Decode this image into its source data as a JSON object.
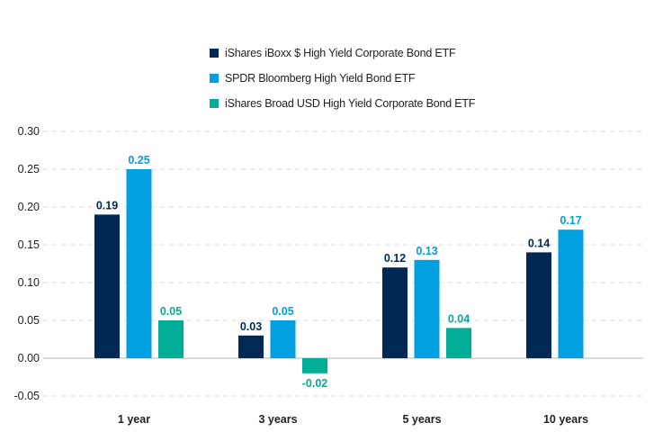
{
  "chart_data": {
    "type": "bar",
    "title": "",
    "xlabel": "",
    "ylabel": "",
    "categories": [
      "1 year",
      "3 years",
      "5 years",
      "10 years"
    ],
    "series": [
      {
        "name": "iShares iBoxx $ High Yield Corporate Bond ETF",
        "color": "#002855",
        "values": [
          0.19,
          0.03,
          0.12,
          0.14
        ],
        "labels": [
          "0.19",
          "0.03",
          "0.12",
          "0.14"
        ]
      },
      {
        "name": "SPDR Bloomberg High Yield Bond ETF",
        "color": "#009FDF",
        "values": [
          0.25,
          0.05,
          0.13,
          0.17
        ],
        "labels": [
          "0.25",
          "0.05",
          "0.13",
          "0.17"
        ]
      },
      {
        "name": "iShares Broad USD High Yield Corporate Bond ETF",
        "color": "#00AE97",
        "values": [
          0.05,
          -0.02,
          0.04,
          null
        ],
        "labels": [
          "0.05",
          "-0.02",
          "0.04",
          null
        ]
      }
    ],
    "ylim": [
      -0.05,
      0.3
    ],
    "yticks": [
      "0.30",
      "0.25",
      "0.20",
      "0.15",
      "0.10",
      "0.05",
      "0.00",
      "-0.05"
    ],
    "ytick_values": [
      0.3,
      0.25,
      0.2,
      0.15,
      0.1,
      0.05,
      0.0,
      -0.05
    ],
    "grid": true,
    "legend": "top-center"
  }
}
